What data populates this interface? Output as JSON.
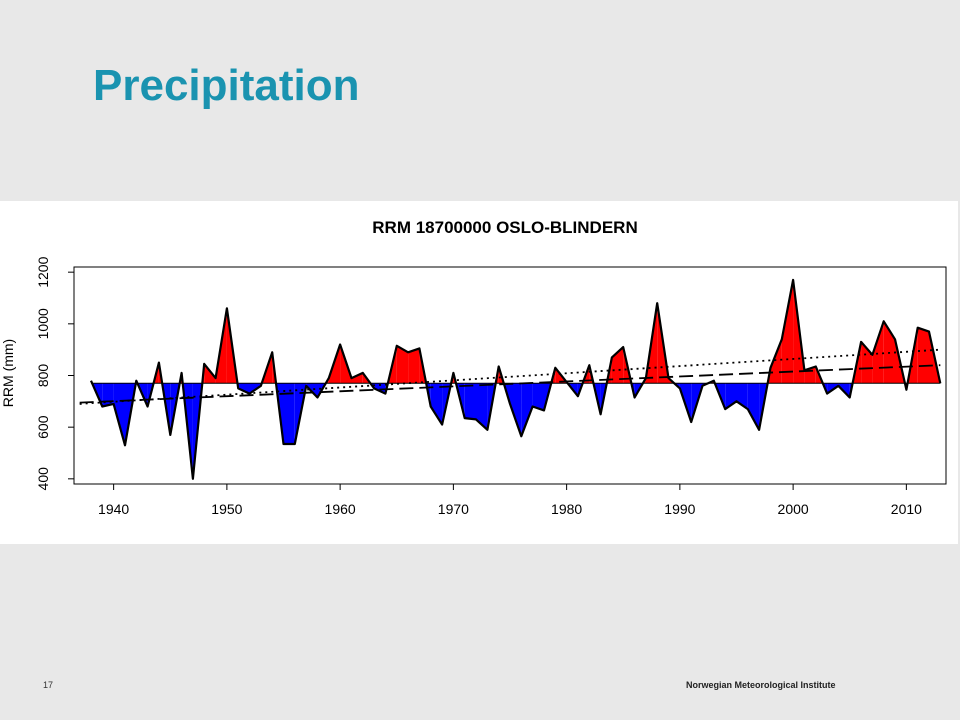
{
  "slide": {
    "title": "Precipitation",
    "page_number": "17",
    "organization": "Norwegian Meteorological Institute"
  },
  "chart_data": {
    "type": "area",
    "title": "RRM 18700000 OSLO-BLINDERN",
    "xlabel": "",
    "ylabel": "RRM (mm)",
    "xlim": [
      1936.5,
      2013.5
    ],
    "ylim": [
      380,
      1220
    ],
    "xticks": [
      1940,
      1950,
      1960,
      1970,
      1980,
      1990,
      2000,
      2010
    ],
    "yticks": [
      400,
      600,
      800,
      1000,
      1200
    ],
    "baseline": 770,
    "colors": {
      "above": "#ff0000",
      "below": "#0000ff",
      "outline": "#000000"
    },
    "x": [
      1938,
      1939,
      1940,
      1941,
      1942,
      1943,
      1944,
      1945,
      1946,
      1947,
      1948,
      1949,
      1950,
      1951,
      1952,
      1953,
      1954,
      1955,
      1956,
      1957,
      1958,
      1959,
      1960,
      1961,
      1962,
      1963,
      1964,
      1965,
      1966,
      1967,
      1968,
      1969,
      1970,
      1971,
      1972,
      1973,
      1974,
      1975,
      1976,
      1977,
      1978,
      1979,
      1980,
      1981,
      1982,
      1983,
      1984,
      1985,
      1986,
      1987,
      1988,
      1989,
      1990,
      1991,
      1992,
      1993,
      1994,
      1995,
      1996,
      1997,
      1998,
      1999,
      2000,
      2001,
      2002,
      2003,
      2004,
      2005,
      2006,
      2007,
      2008,
      2009,
      2010,
      2011,
      2012,
      2013
    ],
    "y": [
      780,
      680,
      690,
      530,
      780,
      680,
      850,
      570,
      810,
      400,
      845,
      790,
      1060,
      750,
      730,
      760,
      890,
      535,
      535,
      760,
      715,
      790,
      920,
      790,
      810,
      750,
      730,
      915,
      890,
      905,
      680,
      610,
      810,
      635,
      630,
      590,
      835,
      690,
      565,
      680,
      665,
      830,
      775,
      720,
      840,
      650,
      870,
      910,
      715,
      790,
      1080,
      790,
      750,
      620,
      760,
      780,
      670,
      700,
      670,
      590,
      830,
      940,
      1170,
      820,
      835,
      730,
      760,
      715,
      930,
      880,
      1010,
      940,
      745,
      985,
      970,
      770
    ],
    "trend_lines": [
      {
        "style": "dashed",
        "x": [
          1937,
          2013
        ],
        "y": [
          695,
          840
        ]
      },
      {
        "style": "dotted",
        "x": [
          1937,
          2013
        ],
        "y": [
          690,
          900
        ]
      }
    ],
    "grid": false,
    "legend": "none"
  }
}
